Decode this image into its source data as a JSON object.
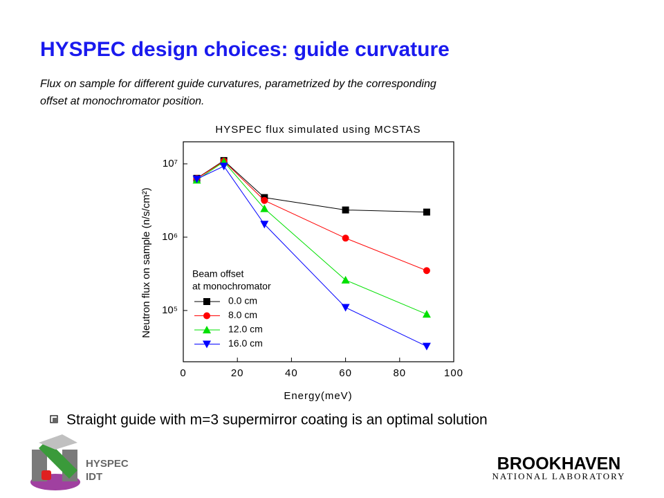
{
  "title": "HYSPEC design choices: guide curvature",
  "subtitle": [
    "Flux on sample for different guide curvatures, parametrized by the corresponding",
    "offset at monochromator position."
  ],
  "bullet": "Straight guide with m=3 supermirror coating is an optimal solution",
  "logo": {
    "line1": "HYSPEC",
    "line2": "IDT"
  },
  "brand": {
    "name": "BROOKHAVEN",
    "sub": "NATIONAL LABORATORY"
  },
  "chart_data": {
    "type": "line",
    "title": "HYSPEC flux simulated using MCSTAS",
    "x_label": "Energy(meV)",
    "y_label": "Neutron flux on sample (n/s/cm²)",
    "x": [
      5,
      15,
      30,
      60,
      90
    ],
    "xlim": [
      0,
      100
    ],
    "xticks": [
      0,
      20,
      40,
      60,
      80,
      100
    ],
    "ylim": [
      20000,
      20000000
    ],
    "y_scale": "log",
    "yticks": [
      {
        "value": 100000,
        "label": "10⁵"
      },
      {
        "value": 1000000,
        "label": "10⁶"
      },
      {
        "value": 10000000,
        "label": "10⁷"
      }
    ],
    "legend_title": [
      "Beam offset",
      "at monochromator"
    ],
    "legend_position": "lower left",
    "series": [
      {
        "name": "0.0 cm",
        "color": "#000000",
        "marker": "square",
        "values": [
          6350000,
          11100000,
          3470000,
          2350000,
          2200000
        ]
      },
      {
        "name": "8.0 cm",
        "color": "#ff0000",
        "marker": "circle",
        "values": [
          6300000,
          10900000,
          3170000,
          970000,
          350000
        ]
      },
      {
        "name": "12.0 cm",
        "color": "#00e000",
        "marker": "triangle-up",
        "values": [
          6000000,
          10700000,
          2450000,
          260000,
          89000
        ]
      },
      {
        "name": "16.0 cm",
        "color": "#0000ff",
        "marker": "triangle-down",
        "values": [
          6200000,
          9300000,
          1500000,
          110000,
          32500
        ]
      }
    ]
  }
}
